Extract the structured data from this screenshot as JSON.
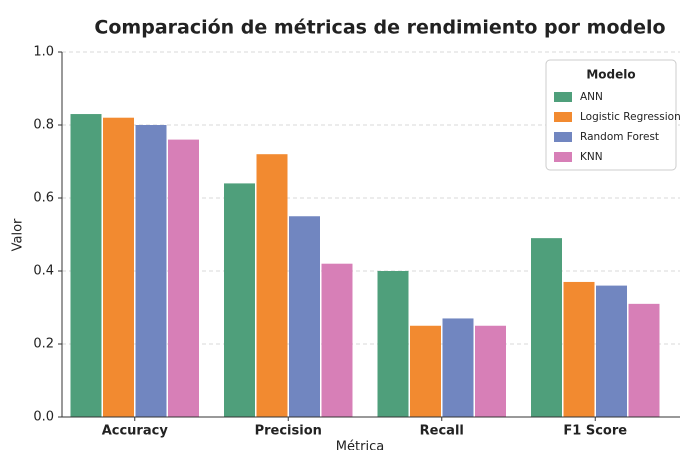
{
  "chart_data": {
    "type": "bar",
    "title": "Comparación de métricas de rendimiento por modelo",
    "x_label": "Métrica",
    "y_label": "Valor",
    "legend_title": "Modelo",
    "legend_position": "upper right",
    "grid": true,
    "categories": [
      "Accuracy",
      "Precision",
      "Recall",
      "F1 Score"
    ],
    "series": [
      {
        "name": "ANN",
        "color": "#4f9f7b",
        "values": [
          0.83,
          0.64,
          0.4,
          0.49
        ]
      },
      {
        "name": "Logistic Regression",
        "color": "#f28a30",
        "values": [
          0.82,
          0.72,
          0.25,
          0.37
        ]
      },
      {
        "name": "Random Forest",
        "color": "#7186c0",
        "values": [
          0.8,
          0.55,
          0.27,
          0.36
        ]
      },
      {
        "name": "KNN",
        "color": "#d77fb7",
        "values": [
          0.76,
          0.42,
          0.25,
          0.31
        ]
      }
    ],
    "ylim": [
      0,
      1
    ],
    "yticks": [
      {
        "value": 0,
        "label": "0.0"
      },
      0.2,
      0.4,
      0.6,
      0.8,
      {
        "value": 1,
        "label": "1.0"
      }
    ]
  }
}
